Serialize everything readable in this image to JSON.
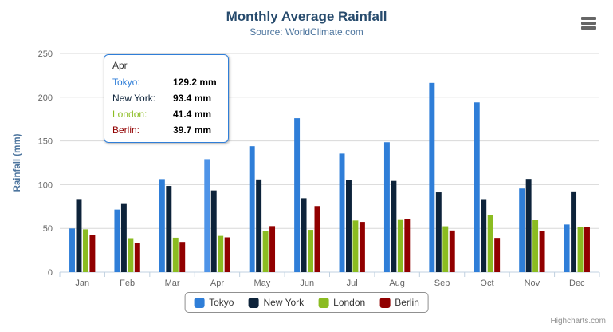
{
  "chart": {
    "credits_text": "Highcharts.com",
    "context_menu_icon": "hamburger-menu-icon"
  },
  "chart_data": {
    "type": "bar",
    "orientation": "vertical",
    "title": "Monthly Average Rainfall",
    "subtitle": "Source: WorldClimate.com",
    "categories": [
      "Jan",
      "Feb",
      "Mar",
      "Apr",
      "May",
      "Jun",
      "Jul",
      "Aug",
      "Sep",
      "Oct",
      "Nov",
      "Dec"
    ],
    "series": [
      {
        "name": "Tokyo",
        "color": "#2f7ed8",
        "values": [
          49.9,
          71.5,
          106.4,
          129.2,
          144.0,
          176.0,
          135.6,
          148.5,
          216.4,
          194.1,
          95.6,
          54.4
        ]
      },
      {
        "name": "New York",
        "color": "#0d233a",
        "values": [
          83.6,
          78.8,
          98.5,
          93.4,
          106.0,
          84.5,
          105.0,
          104.3,
          91.2,
          83.5,
          106.6,
          92.3
        ]
      },
      {
        "name": "London",
        "color": "#8bbc21",
        "values": [
          48.9,
          38.8,
          39.3,
          41.4,
          47.0,
          48.3,
          59.0,
          59.6,
          52.4,
          65.2,
          59.3,
          51.2
        ]
      },
      {
        "name": "Berlin",
        "color": "#910000",
        "values": [
          42.4,
          33.2,
          34.5,
          39.7,
          52.6,
          75.5,
          57.4,
          60.4,
          47.6,
          39.1,
          46.8,
          51.1
        ]
      }
    ],
    "xlabel": "",
    "ylabel": "Rainfall (mm)",
    "ylim": [
      0,
      250
    ],
    "yticks": [
      0,
      50,
      100,
      150,
      200,
      250
    ],
    "ytick_interval": 50,
    "grid": true,
    "legend_position": "bottom"
  },
  "tooltip": {
    "header": "Apr",
    "rows": [
      {
        "label": "Tokyo:",
        "value": "129.2 mm",
        "color": "#2f7ed8"
      },
      {
        "label": "New York:",
        "value": "93.4 mm",
        "color": "#0d233a"
      },
      {
        "label": "London:",
        "value": "41.4 mm",
        "color": "#8bbc21"
      },
      {
        "label": "Berlin:",
        "value": "39.7 mm",
        "color": "#910000"
      }
    ]
  },
  "hover": {
    "series": "Tokyo",
    "category": "Apr",
    "hover_color": "#4f94e8"
  },
  "colors": {
    "title": "#274b6d",
    "subtitle": "#4d759e",
    "axis_title": "#4d759e",
    "axis_labels": "#666666",
    "grid": "#d8d8d8",
    "axis_line": "#c0d0e0",
    "tooltip_border": "#2f7ed8",
    "legend_border": "#909090",
    "legend_text": "#333333",
    "credits": "#909090"
  }
}
